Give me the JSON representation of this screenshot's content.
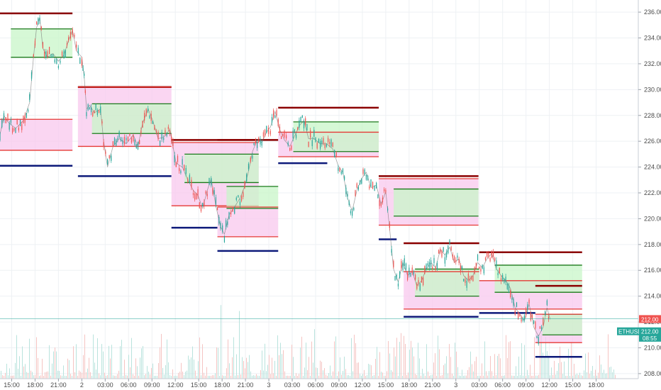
{
  "chart_data": {
    "type": "line",
    "title": "",
    "xlabel": "",
    "ylabel": "",
    "ylim": [
      207.5,
      236.5
    ],
    "y_ticks": [
      208,
      210,
      212,
      214,
      216,
      218,
      220,
      222,
      224,
      226,
      228,
      230,
      232,
      234,
      236
    ],
    "y_tick_labels": [
      "208.00",
      "210.00",
      "212.00",
      "214.00",
      "216.00",
      "218.00",
      "220.00",
      "222.00",
      "224.00",
      "226.00",
      "228.00",
      "230.00",
      "232.00",
      "234.00",
      "236.00"
    ],
    "x_ticks": [
      {
        "label": "15:00",
        "x": 4
      },
      {
        "label": "18:00",
        "x": 7
      },
      {
        "label": "21:00",
        "x": 10
      },
      {
        "label": "2",
        "x": 13
      },
      {
        "label": "03:00",
        "x": 16
      },
      {
        "label": "06:00",
        "x": 19
      },
      {
        "label": "09:00",
        "x": 22
      },
      {
        "label": "12:00",
        "x": 25
      },
      {
        "label": "15:00",
        "x": 28
      },
      {
        "label": "18:00",
        "x": 31
      },
      {
        "label": "21:00",
        "x": 34
      },
      {
        "label": "3",
        "x": 37
      },
      {
        "label": "03:00",
        "x": 40
      },
      {
        "label": "06:00",
        "x": 43
      },
      {
        "label": "09:00",
        "x": 46
      },
      {
        "label": "12:00",
        "x": 49
      },
      {
        "label": "15:00",
        "x": 52
      },
      {
        "label": "18:00",
        "x": 55
      },
      {
        "label": "21:00",
        "x": 58
      },
      {
        "label": "3",
        "x": 61
      },
      {
        "label": "03:00",
        "x": 64
      },
      {
        "label": "06:00",
        "x": 67
      },
      {
        "label": "09:00",
        "x": 70
      },
      {
        "label": "12:00",
        "x": 73
      },
      {
        "label": "15:00",
        "x": 76
      },
      {
        "label": "18:00",
        "x": 79
      }
    ],
    "x_range": [
      2.5,
      81.5
    ],
    "series": [
      {
        "values": [
          [
            2.5,
            226.5
          ],
          [
            3,
            228
          ],
          [
            3.5,
            227.5
          ],
          [
            4.5,
            227
          ],
          [
            5.5,
            227.6
          ],
          [
            6.3,
            229
          ],
          [
            6.8,
            232.5
          ],
          [
            7.2,
            234.8
          ],
          [
            7.6,
            235.6
          ],
          [
            8,
            233.2
          ],
          [
            8.6,
            232.5
          ],
          [
            9.3,
            232.8
          ],
          [
            10,
            232.2
          ],
          [
            10.7,
            232.7
          ],
          [
            11.3,
            233.8
          ],
          [
            11.8,
            234.6
          ],
          [
            12.3,
            233
          ],
          [
            13,
            232.5
          ],
          [
            13.3,
            231
          ],
          [
            13.6,
            228.5
          ],
          [
            14,
            228.8
          ],
          [
            14.6,
            228.2
          ],
          [
            15.4,
            228.5
          ],
          [
            15.8,
            226
          ],
          [
            16.3,
            224
          ],
          [
            17,
            225.6
          ],
          [
            17.8,
            226.2
          ],
          [
            18.7,
            225.8
          ],
          [
            19.6,
            226.5
          ],
          [
            20.2,
            225.6
          ],
          [
            20.8,
            227.4
          ],
          [
            21.5,
            228.5
          ],
          [
            22.1,
            227.6
          ],
          [
            22.8,
            226.2
          ],
          [
            23.5,
            226.3
          ],
          [
            24.3,
            226.9
          ],
          [
            25.1,
            224.3
          ],
          [
            25.9,
            224
          ],
          [
            26.6,
            223
          ],
          [
            27.3,
            222.2
          ],
          [
            27.9,
            221.8
          ],
          [
            28.5,
            220.8
          ],
          [
            29.1,
            222.2
          ],
          [
            29.6,
            223.1
          ],
          [
            30.2,
            221
          ],
          [
            30.8,
            219.4
          ],
          [
            31.3,
            218.8
          ],
          [
            31.9,
            220.3
          ],
          [
            32.6,
            220.9
          ],
          [
            33.3,
            221.6
          ],
          [
            33.9,
            222.5
          ],
          [
            34.4,
            223.7
          ],
          [
            34.9,
            225.2
          ],
          [
            35.5,
            226.1
          ],
          [
            36.1,
            225.9
          ],
          [
            36.7,
            226.7
          ],
          [
            37.2,
            227.1
          ],
          [
            37.8,
            228.3
          ],
          [
            38.4,
            226.9
          ],
          [
            39,
            226.1
          ],
          [
            39.7,
            225.6
          ],
          [
            40.3,
            226.4
          ],
          [
            40.9,
            227.2
          ],
          [
            41.5,
            227.6
          ],
          [
            42.1,
            226.2
          ],
          [
            42.8,
            226.2
          ],
          [
            43.6,
            225.8
          ],
          [
            44.4,
            225.8
          ],
          [
            45.2,
            225.4
          ],
          [
            45.9,
            224.1
          ],
          [
            46.5,
            223.6
          ],
          [
            47.1,
            221.6
          ],
          [
            47.7,
            220.6
          ],
          [
            48.3,
            222.2
          ],
          [
            48.9,
            223.1
          ],
          [
            49.5,
            223.6
          ],
          [
            50.1,
            222.4
          ],
          [
            50.8,
            222.6
          ],
          [
            51.4,
            221.1
          ],
          [
            52,
            222.1
          ],
          [
            52.5,
            219.2
          ],
          [
            53,
            216.1
          ],
          [
            53.6,
            215.1
          ],
          [
            54.2,
            216.6
          ],
          [
            54.8,
            215.6
          ],
          [
            55.4,
            215.9
          ],
          [
            56,
            214.8
          ],
          [
            56.6,
            215.2
          ],
          [
            57.2,
            216.1
          ],
          [
            57.8,
            216.6
          ],
          [
            58.4,
            216.2
          ],
          [
            59,
            217.6
          ],
          [
            59.6,
            217.2
          ],
          [
            60.2,
            217.8
          ],
          [
            60.8,
            216.6
          ],
          [
            61.4,
            216.9
          ],
          [
            62,
            215.6
          ],
          [
            62.6,
            215.2
          ],
          [
            63.2,
            215.6
          ],
          [
            63.8,
            216.6
          ],
          [
            64.4,
            216.2
          ],
          [
            65,
            216.9
          ],
          [
            65.6,
            217.3
          ],
          [
            66.2,
            216.1
          ],
          [
            66.8,
            215.6
          ],
          [
            67.4,
            215.2
          ],
          [
            68,
            214.6
          ],
          [
            68.6,
            213.1
          ],
          [
            69.2,
            212.6
          ],
          [
            69.8,
            212.1
          ],
          [
            70.4,
            213.4
          ],
          [
            71,
            211.6
          ],
          [
            71.6,
            210.9
          ],
          [
            72.2,
            211.6
          ],
          [
            72.7,
            213.1
          ],
          [
            73.1,
            212.2
          ]
        ]
      }
    ],
    "range_boxes": [
      {
        "x0": 2.5,
        "x1": 11.8,
        "h": 235.9,
        "hi": 234.7,
        "lo": 232.5,
        "x2": 11.8,
        "pink_hi": 227.7,
        "pink_lo": 225.3,
        "l": 224.1,
        "bx1": 11.8
      },
      {
        "x0": 12.5,
        "x1": 24.5,
        "h": 230.2,
        "hi": 228.9,
        "lo": 226.6,
        "x2": 24.5,
        "pink_hi": 230.2,
        "pink_lo": 225.6,
        "l": 223.3,
        "bx1": 24.5
      },
      {
        "x0": 24.5,
        "x1": 35.7,
        "h": 226.1,
        "hi": 225.0,
        "lo": 222.8,
        "x2": 35.7,
        "pink_hi": 225.9,
        "pink_lo": 221.0,
        "l": 219.3,
        "bx1": 30.4
      },
      {
        "x0": 30.4,
        "x1": 38.2,
        "h": 226.1,
        "hi": 222.5,
        "lo": 220.8,
        "x2": 38.2,
        "pink_hi": 220.9,
        "pink_lo": 218.6,
        "l": 217.5,
        "bx1": 38.2
      },
      {
        "x0": 38.2,
        "x1": 51.1,
        "h": 228.6,
        "hi": 227.5,
        "lo": 225.2,
        "x2": 51.1,
        "pink_hi": 226.7,
        "pink_lo": 224.8,
        "l": 224.3,
        "bx1": 44.5
      },
      {
        "x0": 51.1,
        "x1": 63.9,
        "h": 223.3,
        "hi": 222.3,
        "lo": 220.2,
        "x2": 63.9,
        "pink_hi": 223.1,
        "pink_lo": 219.5,
        "l": 218.4,
        "bx1": 53.4
      },
      {
        "x0": 54.3,
        "x1": 64.0,
        "h": 218.1,
        "hi": 216.1,
        "lo": 214.0,
        "x2": 63.9,
        "pink_hi": 215.9,
        "pink_lo": 213.0,
        "l": 212.4,
        "bx1": 63.9
      },
      {
        "x0": 64.0,
        "x1": 77.2,
        "h": 217.4,
        "hi": 216.4,
        "lo": 214.3,
        "x2": 77.2,
        "pink_hi": 215.2,
        "pink_lo": 213.0,
        "l": 212.7,
        "bx1": 71.2
      },
      {
        "x0": 71.2,
        "x1": 77.2,
        "h": 214.8,
        "hi": 212.6,
        "lo": 211.0,
        "x2": 77.2,
        "pink_hi": 212.6,
        "pink_lo": 210.4,
        "l": 209.3,
        "bx1": 77.2
      }
    ],
    "price_line": 212.25,
    "badges": [
      {
        "label": "212.00",
        "color": "#ef5350",
        "y": 212.2
      },
      {
        "label": "ETHUSD",
        "color": "#26a69a",
        "y": 211.25
      },
      {
        "label": "212.00",
        "color": "#26a69a",
        "y": 211.25
      },
      {
        "label": "08:55",
        "color": "#26a69a",
        "y": 210.75
      }
    ],
    "grid": true,
    "colors": {
      "up": "#26a69a",
      "down": "#ef5350",
      "high_line": "#8b0000",
      "green_line": "#1b7a1b",
      "red_line": "#e53935",
      "low_line": "#0d1a7a",
      "green_fill": "#c8f5c8",
      "pink_fill": "#f8c8ee",
      "gray_fill": "#d9d9d9",
      "grid": "#eef1f4",
      "axis_text": "#4a4a4a"
    }
  }
}
